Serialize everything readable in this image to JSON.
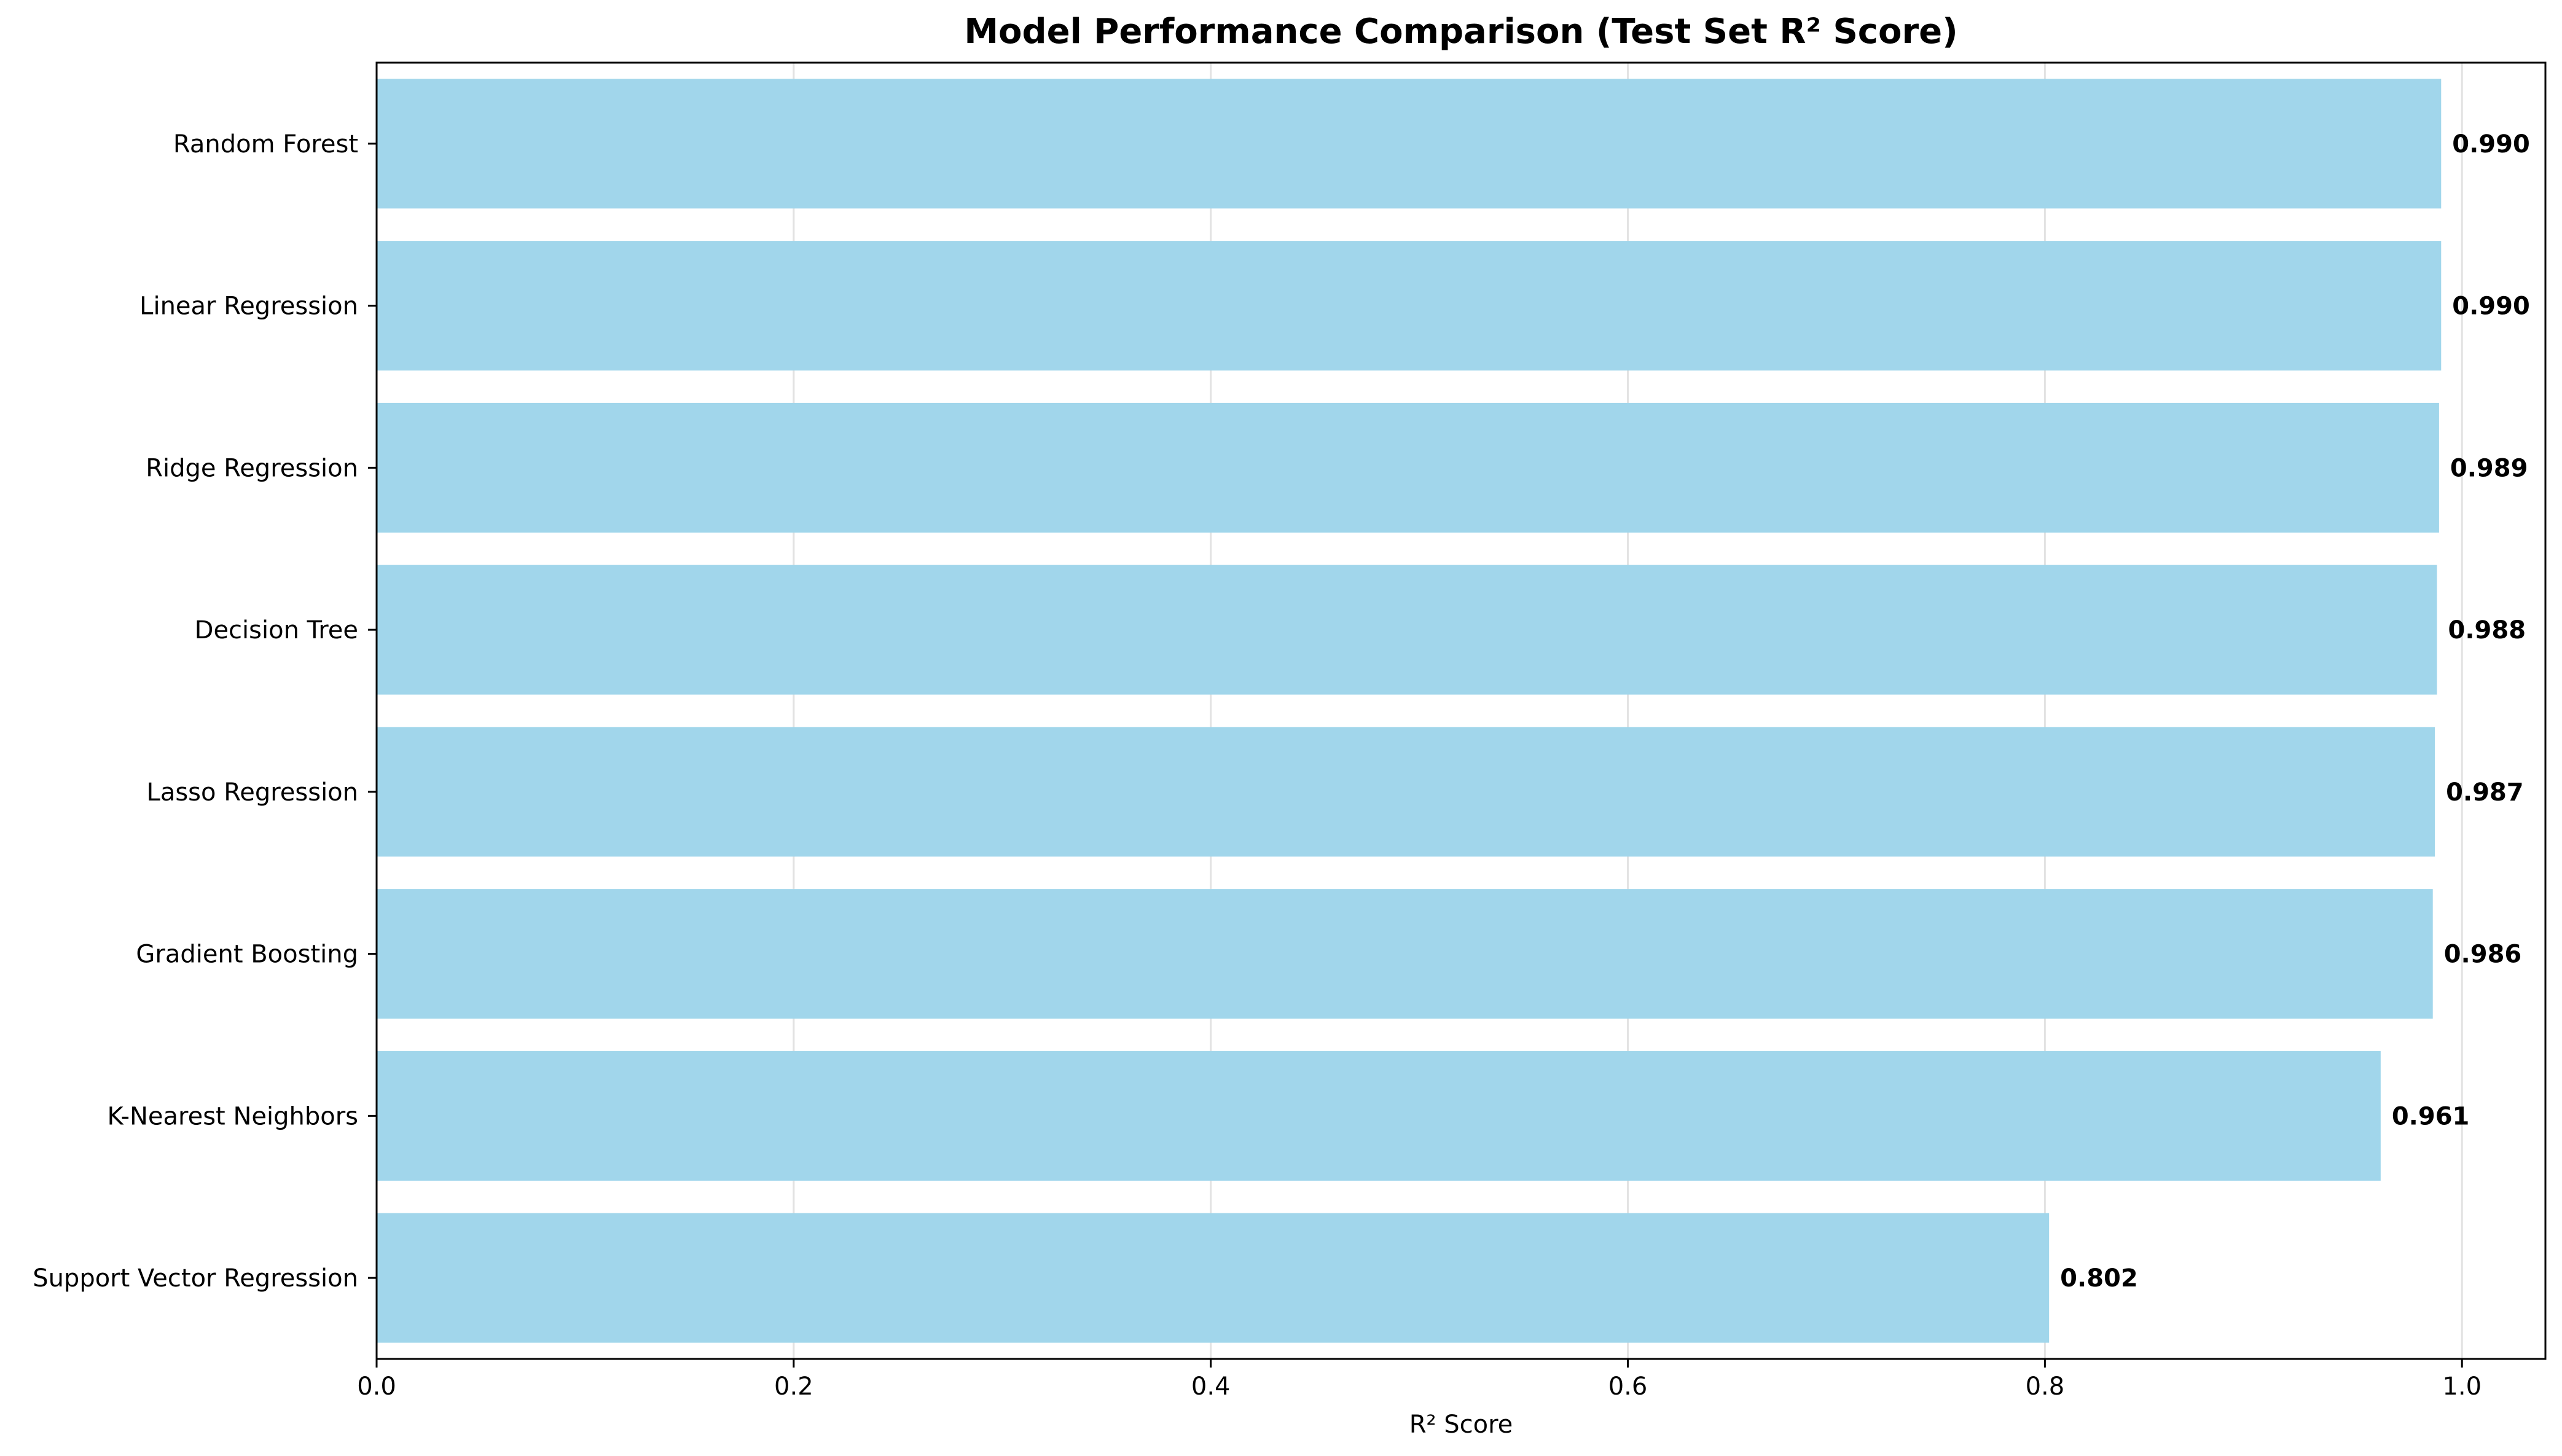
{
  "chart_data": {
    "type": "bar",
    "orientation": "horizontal",
    "title": "Model Performance Comparison (Test Set R² Score)",
    "xlabel": "R² Score",
    "ylabel": "",
    "categories": [
      "Random Forest",
      "Linear Regression",
      "Ridge Regression",
      "Decision Tree",
      "Lasso Regression",
      "Gradient Boosting",
      "K-Nearest Neighbors",
      "Support Vector Regression"
    ],
    "values": [
      0.99,
      0.99,
      0.989,
      0.988,
      0.987,
      0.986,
      0.961,
      0.802
    ],
    "value_labels": [
      "0.990",
      "0.990",
      "0.989",
      "0.988",
      "0.987",
      "0.986",
      "0.961",
      "0.802"
    ],
    "xlim": [
      0,
      1.04
    ],
    "xticks": [
      0.0,
      0.2,
      0.4,
      0.6,
      0.8,
      1.0
    ],
    "xtick_labels": [
      "0.0",
      "0.2",
      "0.4",
      "0.6",
      "0.8",
      "1.0"
    ],
    "grid": "x",
    "bar_color": "#a1d6eb",
    "grid_color": "#e2e2e2"
  }
}
